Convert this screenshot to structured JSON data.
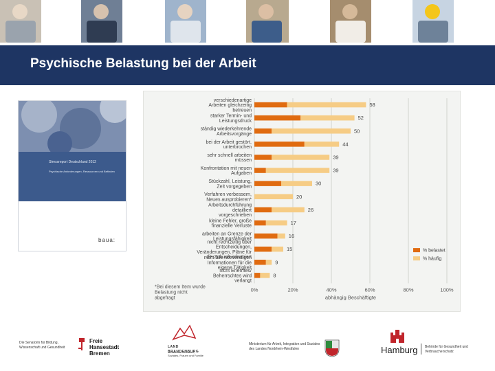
{
  "slide": {
    "title": "Psychische Belastung bei der Arbeit"
  },
  "header": {
    "photos": [
      {
        "name": "photo-care-workers",
        "bg": "#c9c1b5",
        "a": "#e8d8c6",
        "b": "#9aa3ad"
      },
      {
        "name": "photo-call-center",
        "bg": "#6f7f95",
        "a": "#d7c2ae",
        "b": "#2f3c52"
      },
      {
        "name": "photo-keyboard-hands",
        "bg": "#9fb4cc",
        "a": "#e6d3c1",
        "b": "#dfe5ec"
      },
      {
        "name": "photo-team-meeting",
        "bg": "#b8a98f",
        "a": "#dcbfa4",
        "b": "#3d5d8a"
      },
      {
        "name": "photo-baker",
        "bg": "#a58d6e",
        "a": "#d5b999",
        "b": "#f1ede7"
      },
      {
        "name": "photo-construction-worker",
        "bg": "#c7d4e2",
        "a": "#f4c61a",
        "b": "#6e8299"
      }
    ]
  },
  "book": {
    "series": "Stressreport Deutschland 2012",
    "subtitle": "Psychische Anforderungen, Ressourcen und Befinden",
    "logo": "baua:"
  },
  "chart_data": {
    "type": "bar",
    "orientation": "horizontal",
    "stacked": true,
    "categories": [
      "verschiedenartige Arbeiten gleichzeitig betreuen",
      "starker Termin- und Leistungsdruck",
      "ständig wiederkehrende Arbeitsvorgänge",
      "bei der Arbeit gestört, unterbrochen",
      "sehr schnell arbeiten müssen",
      "Konfrontation mit neuen Aufgaben",
      "Stückzahl, Leistung, Zeit vorgegeben",
      "Verfahren verbessern, Neues ausprobieren*",
      "Arbeitsdurchführung detailliert vorgeschrieben",
      "kleine Fehler, große finanzielle Verluste",
      "arbeiten an Grenze der Leistungsfähigkeit",
      "nicht rechtzeitig über Entscheidungen, Veränderungen, Pläne für die Zukunft informiert",
      "nicht alle notwendigen Informationen für die eigene Tätigkeit",
      "nicht Erlerntes/ Beherrschtes wird verlangt"
    ],
    "totals": [
      58,
      52,
      50,
      44,
      39,
      39,
      30,
      20,
      26,
      17,
      16,
      15,
      9,
      8
    ],
    "series": [
      {
        "name": "% belastet",
        "color": "#e06b10",
        "values": [
          17,
          24,
          9,
          26,
          9,
          6,
          14,
          0,
          9,
          6,
          12,
          9,
          6,
          3
        ]
      },
      {
        "name": "% häufig",
        "color": "#f6cc85",
        "values": [
          41,
          28,
          41,
          18,
          30,
          33,
          16,
          20,
          17,
          11,
          4,
          6,
          3,
          5
        ]
      }
    ],
    "xlim": [
      0,
      100
    ],
    "x_ticks": [
      "0%",
      "20%",
      "40%",
      "60%",
      "80%",
      "100%"
    ],
    "xlabel": "abhängig Beschäftigte",
    "footnote": "*Bei diesem Item wurde Belastung nicht abgefragt",
    "legend_position": "bottom-right"
  },
  "footer": {
    "senator": "Die Senatorin für Bildung, Wissenschaft und Gesundheit",
    "bremen": "Freie Hansestadt Bremen",
    "brandenburg": "LAND BRANDENBURG",
    "brandenburg_ministry": "Ministerium für Arbeit, Soziales, Frauen und Familie",
    "nrw": "Ministerium für Arbeit, Integration und Soziales des Landes Nordrhein-Westfalen",
    "hamburg": "Hamburg",
    "hamburg_authority": "Behörde für Gesundheit und Verbraucherschutz"
  }
}
